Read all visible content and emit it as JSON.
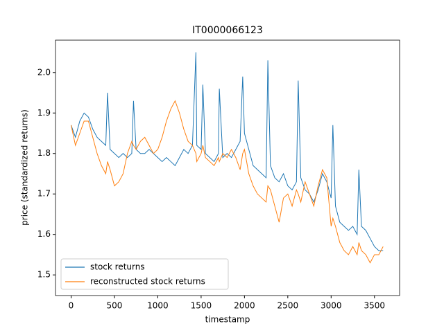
{
  "chart_data": {
    "type": "line",
    "title": "IT0000066123",
    "xlabel": "timestamp",
    "ylabel": "price (standardized returns)",
    "x": [
      0,
      50,
      100,
      150,
      200,
      250,
      300,
      350,
      400,
      420,
      450,
      500,
      550,
      600,
      650,
      700,
      720,
      750,
      800,
      850,
      900,
      950,
      1000,
      1050,
      1100,
      1150,
      1200,
      1250,
      1300,
      1350,
      1400,
      1440,
      1450,
      1500,
      1520,
      1550,
      1600,
      1650,
      1700,
      1710,
      1750,
      1800,
      1850,
      1900,
      1950,
      1980,
      2000,
      2050,
      2100,
      2150,
      2200,
      2250,
      2270,
      2300,
      2350,
      2400,
      2450,
      2500,
      2550,
      2600,
      2620,
      2650,
      2700,
      2750,
      2800,
      2850,
      2900,
      2950,
      3000,
      3020,
      3050,
      3100,
      3150,
      3200,
      3250,
      3300,
      3320,
      3350,
      3400,
      3450,
      3500,
      3550,
      3600
    ],
    "series": [
      {
        "name": "stock returns",
        "color": "#1f77b4",
        "values": [
          1.87,
          1.84,
          1.88,
          1.9,
          1.89,
          1.86,
          1.84,
          1.83,
          1.82,
          1.95,
          1.81,
          1.8,
          1.79,
          1.8,
          1.79,
          1.8,
          1.93,
          1.81,
          1.8,
          1.8,
          1.81,
          1.8,
          1.79,
          1.78,
          1.79,
          1.78,
          1.77,
          1.79,
          1.81,
          1.8,
          1.82,
          2.05,
          1.82,
          1.81,
          1.97,
          1.8,
          1.79,
          1.78,
          1.8,
          1.96,
          1.79,
          1.8,
          1.79,
          1.81,
          1.83,
          1.99,
          1.85,
          1.81,
          1.77,
          1.76,
          1.75,
          1.74,
          2.03,
          1.77,
          1.74,
          1.73,
          1.75,
          1.72,
          1.71,
          1.73,
          1.98,
          1.74,
          1.71,
          1.7,
          1.68,
          1.71,
          1.75,
          1.73,
          1.69,
          1.87,
          1.67,
          1.63,
          1.62,
          1.61,
          1.62,
          1.6,
          1.76,
          1.62,
          1.61,
          1.59,
          1.57,
          1.56,
          1.56
        ]
      },
      {
        "name": "reconstructed stock returns",
        "color": "#ff7f0e",
        "values": [
          1.87,
          1.82,
          1.85,
          1.88,
          1.88,
          1.84,
          1.8,
          1.77,
          1.75,
          1.78,
          1.76,
          1.72,
          1.73,
          1.75,
          1.8,
          1.83,
          1.82,
          1.81,
          1.83,
          1.84,
          1.82,
          1.8,
          1.81,
          1.84,
          1.88,
          1.91,
          1.93,
          1.9,
          1.86,
          1.83,
          1.82,
          1.8,
          1.78,
          1.8,
          1.82,
          1.79,
          1.78,
          1.77,
          1.79,
          1.78,
          1.8,
          1.79,
          1.81,
          1.79,
          1.76,
          1.8,
          1.81,
          1.75,
          1.72,
          1.7,
          1.69,
          1.68,
          1.72,
          1.71,
          1.67,
          1.63,
          1.69,
          1.7,
          1.67,
          1.71,
          1.7,
          1.68,
          1.73,
          1.7,
          1.67,
          1.72,
          1.76,
          1.74,
          1.62,
          1.64,
          1.62,
          1.58,
          1.56,
          1.55,
          1.57,
          1.55,
          1.58,
          1.56,
          1.55,
          1.53,
          1.55,
          1.55,
          1.57
        ]
      }
    ],
    "xlim": [
      -180,
      3790
    ],
    "ylim": [
      1.449,
      2.08
    ],
    "xticks": [
      0,
      500,
      1000,
      1500,
      2000,
      2500,
      3000,
      3500
    ],
    "yticks": [
      1.5,
      1.6,
      1.7,
      1.8,
      1.9,
      {
        "value": 2,
        "label": "2.0"
      }
    ],
    "legend": "lower left"
  }
}
